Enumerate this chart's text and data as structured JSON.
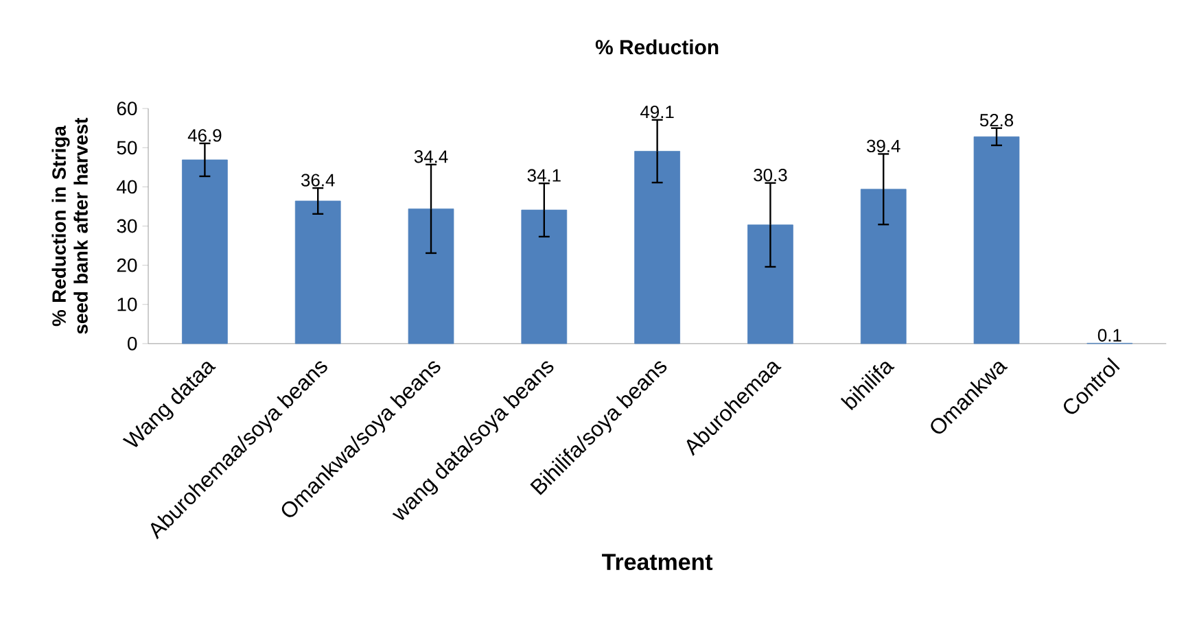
{
  "chart_data": {
    "type": "bar",
    "title": "% Reduction",
    "xlabel": "Treatment",
    "ylabel": "% Reduction in Striga seed bank after harvest",
    "categories": [
      "Wang dataa",
      "Aburohemaa/soya beans",
      "Omankwa/soya beans",
      "wang data/soya beans",
      "Bihilifa/soya beans",
      "Aburohemaa",
      "bihilifa",
      "Omankwa",
      "Control"
    ],
    "values": [
      46.9,
      36.4,
      34.4,
      34.1,
      49.1,
      30.3,
      39.4,
      52.8,
      0.1
    ],
    "errors": [
      4.2,
      3.3,
      11.3,
      6.8,
      8.0,
      10.7,
      9.0,
      2.2,
      null
    ],
    "color": "#4f81bd",
    "data_labels": true,
    "ylim": [
      0,
      60
    ],
    "yticks": [
      0,
      10,
      20,
      30,
      40,
      50,
      60
    ],
    "grid": false
  }
}
